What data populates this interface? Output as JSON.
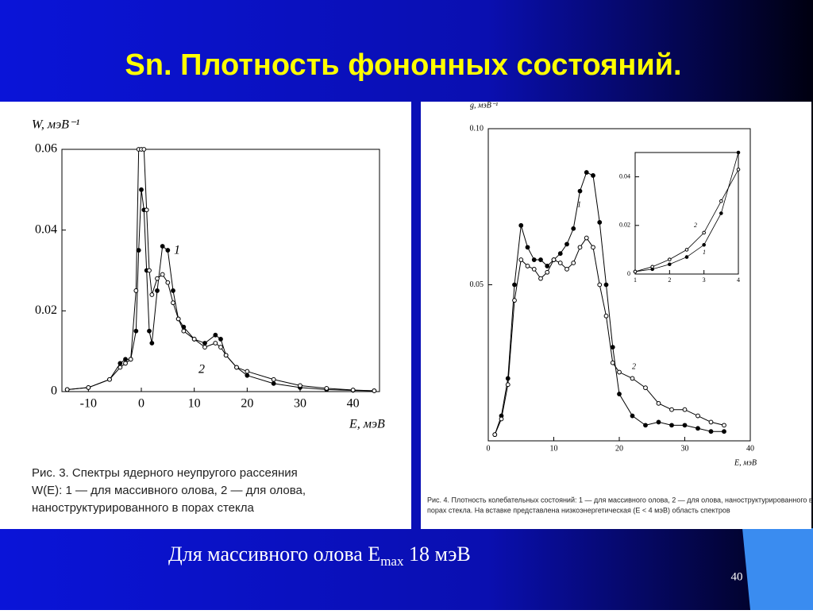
{
  "slide": {
    "title": "Sn. Плотность фононных состояний.",
    "footer_text": [
      "Для массивного олова E",
      "max",
      " 18 мэВ"
    ],
    "page_number": "40"
  },
  "chart_data": [
    {
      "type": "line",
      "y_label": "W, мэВ⁻¹",
      "x_label": "E, мэВ",
      "caption": [
        "Рис. 3.   Спектры ядерного неупругого рассеяния",
        "W(E): 1 — для массивного олова, 2 — для олова,",
        "наноструктурированного в порах стекла"
      ],
      "xlim": [
        -15,
        45
      ],
      "ylim": [
        0,
        0.06
      ],
      "xticks": [
        -10,
        0,
        10,
        20,
        30,
        40
      ],
      "yticks": [
        0,
        0.02,
        0.04,
        0.06
      ],
      "x": [
        -14,
        -10,
        -6,
        -4,
        -3,
        -2,
        -1,
        -0.5,
        0,
        0.5,
        1,
        1.5,
        2,
        3,
        4,
        5,
        6,
        7,
        8,
        10,
        12,
        14,
        15,
        16,
        18,
        20,
        25,
        30,
        35,
        40,
        44
      ],
      "series": [
        {
          "name": "1",
          "color": "#000000",
          "marker": "filled",
          "values": [
            0.0005,
            0.001,
            0.003,
            0.007,
            0.008,
            0.008,
            0.015,
            0.035,
            0.05,
            0.045,
            0.03,
            0.015,
            0.012,
            0.025,
            0.036,
            0.035,
            0.025,
            0.018,
            0.016,
            0.013,
            0.012,
            0.014,
            0.013,
            0.009,
            0.006,
            0.004,
            0.002,
            0.001,
            0.0005,
            0.0003,
            0.0002
          ]
        },
        {
          "name": "2",
          "color": "#000000",
          "marker": "open",
          "values": [
            0.0005,
            0.001,
            0.003,
            0.006,
            0.007,
            0.008,
            0.025,
            0.06,
            0.06,
            0.06,
            0.045,
            0.03,
            0.024,
            0.028,
            0.029,
            0.027,
            0.022,
            0.018,
            0.015,
            0.013,
            0.011,
            0.012,
            0.011,
            0.009,
            0.006,
            0.005,
            0.003,
            0.0015,
            0.0008,
            0.0004,
            0.0002
          ]
        }
      ]
    },
    {
      "type": "line",
      "y_label": "g, мэВ⁻¹",
      "x_label": "E, мэВ",
      "caption": [
        "Рис. 4. Плотность колебательных состояний: 1 — для массивного олова, 2 — для олова, наноструктурированного в",
        "порах стекла. На вставке представлена низкоэнергетическая (E < 4 мэВ) область спектров"
      ],
      "xlim": [
        0,
        40
      ],
      "ylim": [
        0,
        0.1
      ],
      "xticks": [
        0,
        10,
        20,
        30,
        40
      ],
      "yticks": [
        0.05,
        {
          "value": 0.1,
          "label": "0.10"
        }
      ],
      "x": [
        1,
        2,
        3,
        4,
        5,
        6,
        7,
        8,
        9,
        10,
        11,
        12,
        13,
        14,
        15,
        16,
        17,
        18,
        19,
        20,
        22,
        24,
        26,
        28,
        30,
        32,
        34,
        36
      ],
      "series": [
        {
          "name": "1",
          "color": "#000000",
          "marker": "filled",
          "values": [
            0.002,
            0.008,
            0.02,
            0.05,
            0.069,
            0.062,
            0.058,
            0.058,
            0.056,
            0.058,
            0.06,
            0.063,
            0.068,
            0.08,
            0.086,
            0.085,
            0.07,
            0.05,
            0.03,
            0.015,
            0.008,
            0.005,
            0.006,
            0.005,
            0.005,
            0.004,
            0.003,
            0.003
          ]
        },
        {
          "name": "2",
          "color": "#000000",
          "marker": "open",
          "values": [
            0.002,
            0.007,
            0.018,
            0.045,
            0.058,
            0.056,
            0.055,
            0.052,
            0.054,
            0.058,
            0.057,
            0.055,
            0.057,
            0.062,
            0.065,
            0.062,
            0.05,
            0.04,
            0.025,
            0.022,
            0.02,
            0.017,
            0.012,
            0.01,
            0.01,
            0.008,
            0.006,
            0.005
          ]
        }
      ]
    },
    {
      "type": "line",
      "xlim": [
        1,
        4
      ],
      "ylim": [
        0,
        0.05
      ],
      "xticks": [
        1,
        2,
        3,
        4
      ],
      "yticks": [
        0,
        0.02,
        0.04
      ],
      "x": [
        1,
        1.5,
        2,
        2.5,
        3,
        3.5,
        4
      ],
      "series": [
        {
          "name": "1",
          "color": "#000000",
          "marker": "filled",
          "values": [
            0.001,
            0.002,
            0.004,
            0.007,
            0.012,
            0.025,
            0.05
          ]
        },
        {
          "name": "2",
          "color": "#000000",
          "marker": "open",
          "values": [
            0.001,
            0.003,
            0.006,
            0.01,
            0.017,
            0.03,
            0.043
          ]
        }
      ]
    }
  ]
}
